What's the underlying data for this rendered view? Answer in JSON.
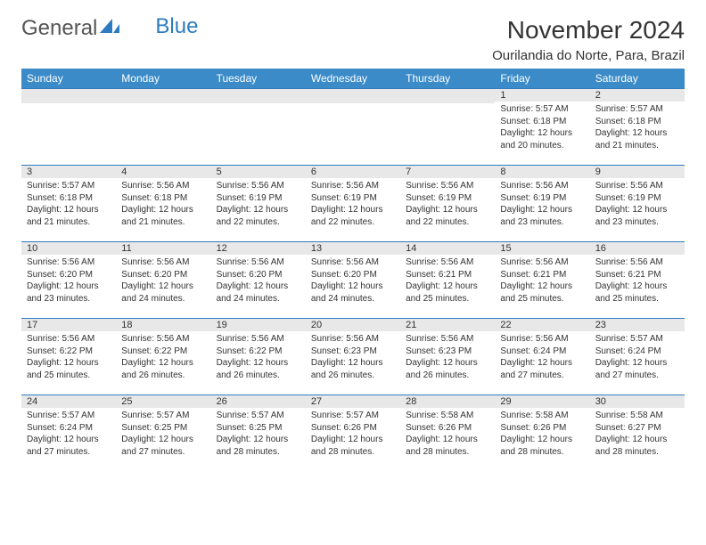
{
  "brand": {
    "part1": "General",
    "part2": "Blue"
  },
  "title": "November 2024",
  "location": "Ourilandia do Norte, Para, Brazil",
  "colors": {
    "header_bg": "#3b8bc9",
    "border": "#2e7bc0",
    "daynum_bg": "#e8e8e8",
    "text": "#333333",
    "page_bg": "#ffffff"
  },
  "weekdays": [
    "Sunday",
    "Monday",
    "Tuesday",
    "Wednesday",
    "Thursday",
    "Friday",
    "Saturday"
  ],
  "weeks": [
    [
      {
        "n": "",
        "sr": "",
        "ss": "",
        "dl": ""
      },
      {
        "n": "",
        "sr": "",
        "ss": "",
        "dl": ""
      },
      {
        "n": "",
        "sr": "",
        "ss": "",
        "dl": ""
      },
      {
        "n": "",
        "sr": "",
        "ss": "",
        "dl": ""
      },
      {
        "n": "",
        "sr": "",
        "ss": "",
        "dl": ""
      },
      {
        "n": "1",
        "sr": "Sunrise: 5:57 AM",
        "ss": "Sunset: 6:18 PM",
        "dl": "Daylight: 12 hours and 20 minutes."
      },
      {
        "n": "2",
        "sr": "Sunrise: 5:57 AM",
        "ss": "Sunset: 6:18 PM",
        "dl": "Daylight: 12 hours and 21 minutes."
      }
    ],
    [
      {
        "n": "3",
        "sr": "Sunrise: 5:57 AM",
        "ss": "Sunset: 6:18 PM",
        "dl": "Daylight: 12 hours and 21 minutes."
      },
      {
        "n": "4",
        "sr": "Sunrise: 5:56 AM",
        "ss": "Sunset: 6:18 PM",
        "dl": "Daylight: 12 hours and 21 minutes."
      },
      {
        "n": "5",
        "sr": "Sunrise: 5:56 AM",
        "ss": "Sunset: 6:19 PM",
        "dl": "Daylight: 12 hours and 22 minutes."
      },
      {
        "n": "6",
        "sr": "Sunrise: 5:56 AM",
        "ss": "Sunset: 6:19 PM",
        "dl": "Daylight: 12 hours and 22 minutes."
      },
      {
        "n": "7",
        "sr": "Sunrise: 5:56 AM",
        "ss": "Sunset: 6:19 PM",
        "dl": "Daylight: 12 hours and 22 minutes."
      },
      {
        "n": "8",
        "sr": "Sunrise: 5:56 AM",
        "ss": "Sunset: 6:19 PM",
        "dl": "Daylight: 12 hours and 23 minutes."
      },
      {
        "n": "9",
        "sr": "Sunrise: 5:56 AM",
        "ss": "Sunset: 6:19 PM",
        "dl": "Daylight: 12 hours and 23 minutes."
      }
    ],
    [
      {
        "n": "10",
        "sr": "Sunrise: 5:56 AM",
        "ss": "Sunset: 6:20 PM",
        "dl": "Daylight: 12 hours and 23 minutes."
      },
      {
        "n": "11",
        "sr": "Sunrise: 5:56 AM",
        "ss": "Sunset: 6:20 PM",
        "dl": "Daylight: 12 hours and 24 minutes."
      },
      {
        "n": "12",
        "sr": "Sunrise: 5:56 AM",
        "ss": "Sunset: 6:20 PM",
        "dl": "Daylight: 12 hours and 24 minutes."
      },
      {
        "n": "13",
        "sr": "Sunrise: 5:56 AM",
        "ss": "Sunset: 6:20 PM",
        "dl": "Daylight: 12 hours and 24 minutes."
      },
      {
        "n": "14",
        "sr": "Sunrise: 5:56 AM",
        "ss": "Sunset: 6:21 PM",
        "dl": "Daylight: 12 hours and 25 minutes."
      },
      {
        "n": "15",
        "sr": "Sunrise: 5:56 AM",
        "ss": "Sunset: 6:21 PM",
        "dl": "Daylight: 12 hours and 25 minutes."
      },
      {
        "n": "16",
        "sr": "Sunrise: 5:56 AM",
        "ss": "Sunset: 6:21 PM",
        "dl": "Daylight: 12 hours and 25 minutes."
      }
    ],
    [
      {
        "n": "17",
        "sr": "Sunrise: 5:56 AM",
        "ss": "Sunset: 6:22 PM",
        "dl": "Daylight: 12 hours and 25 minutes."
      },
      {
        "n": "18",
        "sr": "Sunrise: 5:56 AM",
        "ss": "Sunset: 6:22 PM",
        "dl": "Daylight: 12 hours and 26 minutes."
      },
      {
        "n": "19",
        "sr": "Sunrise: 5:56 AM",
        "ss": "Sunset: 6:22 PM",
        "dl": "Daylight: 12 hours and 26 minutes."
      },
      {
        "n": "20",
        "sr": "Sunrise: 5:56 AM",
        "ss": "Sunset: 6:23 PM",
        "dl": "Daylight: 12 hours and 26 minutes."
      },
      {
        "n": "21",
        "sr": "Sunrise: 5:56 AM",
        "ss": "Sunset: 6:23 PM",
        "dl": "Daylight: 12 hours and 26 minutes."
      },
      {
        "n": "22",
        "sr": "Sunrise: 5:56 AM",
        "ss": "Sunset: 6:24 PM",
        "dl": "Daylight: 12 hours and 27 minutes."
      },
      {
        "n": "23",
        "sr": "Sunrise: 5:57 AM",
        "ss": "Sunset: 6:24 PM",
        "dl": "Daylight: 12 hours and 27 minutes."
      }
    ],
    [
      {
        "n": "24",
        "sr": "Sunrise: 5:57 AM",
        "ss": "Sunset: 6:24 PM",
        "dl": "Daylight: 12 hours and 27 minutes."
      },
      {
        "n": "25",
        "sr": "Sunrise: 5:57 AM",
        "ss": "Sunset: 6:25 PM",
        "dl": "Daylight: 12 hours and 27 minutes."
      },
      {
        "n": "26",
        "sr": "Sunrise: 5:57 AM",
        "ss": "Sunset: 6:25 PM",
        "dl": "Daylight: 12 hours and 28 minutes."
      },
      {
        "n": "27",
        "sr": "Sunrise: 5:57 AM",
        "ss": "Sunset: 6:26 PM",
        "dl": "Daylight: 12 hours and 28 minutes."
      },
      {
        "n": "28",
        "sr": "Sunrise: 5:58 AM",
        "ss": "Sunset: 6:26 PM",
        "dl": "Daylight: 12 hours and 28 minutes."
      },
      {
        "n": "29",
        "sr": "Sunrise: 5:58 AM",
        "ss": "Sunset: 6:26 PM",
        "dl": "Daylight: 12 hours and 28 minutes."
      },
      {
        "n": "30",
        "sr": "Sunrise: 5:58 AM",
        "ss": "Sunset: 6:27 PM",
        "dl": "Daylight: 12 hours and 28 minutes."
      }
    ]
  ]
}
